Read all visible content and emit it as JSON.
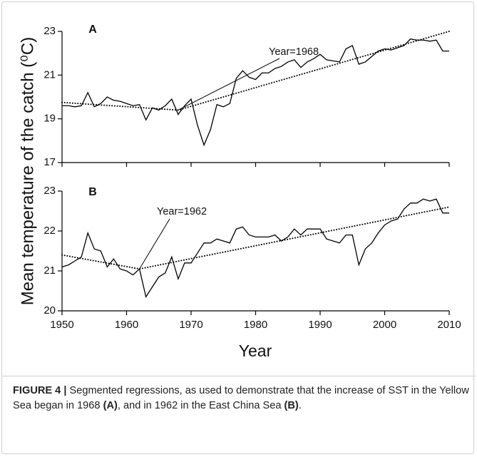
{
  "chart_data": [
    {
      "type": "line",
      "title": "A",
      "x": [
        1950,
        1951,
        1952,
        1953,
        1954,
        1955,
        1956,
        1957,
        1958,
        1959,
        1960,
        1961,
        1962,
        1963,
        1964,
        1965,
        1966,
        1967,
        1968,
        1969,
        1970,
        1971,
        1972,
        1973,
        1974,
        1975,
        1976,
        1977,
        1978,
        1979,
        1980,
        1981,
        1982,
        1983,
        1984,
        1985,
        1986,
        1987,
        1988,
        1989,
        1990,
        1991,
        1992,
        1993,
        1994,
        1995,
        1996,
        1997,
        1998,
        1999,
        2000,
        2001,
        2002,
        2003,
        2004,
        2005,
        2006,
        2007,
        2008,
        2009,
        2010
      ],
      "values": [
        19.6,
        19.6,
        19.55,
        19.6,
        20.2,
        19.55,
        19.7,
        20.0,
        19.85,
        19.8,
        19.7,
        19.6,
        19.65,
        18.95,
        19.5,
        19.4,
        19.6,
        19.9,
        19.2,
        19.6,
        19.9,
        18.7,
        17.8,
        18.5,
        19.65,
        19.55,
        19.7,
        20.85,
        21.2,
        20.9,
        20.8,
        21.1,
        21.1,
        21.3,
        21.4,
        21.6,
        21.7,
        21.35,
        21.6,
        21.75,
        21.95,
        21.7,
        21.65,
        21.6,
        22.2,
        22.35,
        21.5,
        21.6,
        21.85,
        22.1,
        22.2,
        22.15,
        22.25,
        22.35,
        22.65,
        22.6,
        22.6,
        22.55,
        22.6,
        22.1,
        22.1
      ],
      "color": "#000000",
      "trend": {
        "x": [
          1950,
          1968,
          2010
        ],
        "values": [
          19.75,
          19.4,
          23.0
        ],
        "style": "dotted"
      },
      "annotation": {
        "text": "Year=1968",
        "x": 1968
      },
      "xlim": [
        1950,
        2010
      ],
      "xticks": [
        1950,
        1960,
        1970,
        1980,
        1990,
        2000,
        2010
      ],
      "xtick_labels": false,
      "ylim": [
        17,
        23
      ],
      "yticks": [
        17,
        19,
        21,
        23
      ]
    },
    {
      "type": "line",
      "title": "B",
      "x": [
        1950,
        1951,
        1952,
        1953,
        1954,
        1955,
        1956,
        1957,
        1958,
        1959,
        1960,
        1961,
        1962,
        1963,
        1964,
        1965,
        1966,
        1967,
        1968,
        1969,
        1970,
        1971,
        1972,
        1973,
        1974,
        1975,
        1976,
        1977,
        1978,
        1979,
        1980,
        1981,
        1982,
        1983,
        1984,
        1985,
        1986,
        1987,
        1988,
        1989,
        1990,
        1991,
        1992,
        1993,
        1994,
        1995,
        1996,
        1997,
        1998,
        1999,
        2000,
        2001,
        2002,
        2003,
        2004,
        2005,
        2006,
        2007,
        2008,
        2009,
        2010
      ],
      "values": [
        21.1,
        21.15,
        21.25,
        21.35,
        21.95,
        21.55,
        21.5,
        21.1,
        21.3,
        21.05,
        21.0,
        20.9,
        21.05,
        20.35,
        20.6,
        20.85,
        20.95,
        21.35,
        20.8,
        21.2,
        21.2,
        21.45,
        21.7,
        21.7,
        21.8,
        21.75,
        21.7,
        22.05,
        22.1,
        21.9,
        21.85,
        21.85,
        21.85,
        21.9,
        21.75,
        21.85,
        22.05,
        21.9,
        22.05,
        22.05,
        22.05,
        21.8,
        21.75,
        21.7,
        21.9,
        21.9,
        21.15,
        21.55,
        21.7,
        21.95,
        22.15,
        22.25,
        22.3,
        22.55,
        22.7,
        22.7,
        22.8,
        22.75,
        22.8,
        22.45,
        22.45
      ],
      "color": "#000000",
      "trend": {
        "x": [
          1950,
          1962,
          2010
        ],
        "values": [
          21.4,
          21.05,
          22.6
        ],
        "style": "dotted"
      },
      "annotation": {
        "text": "Year=1962",
        "x": 1962
      },
      "xlim": [
        1950,
        2010
      ],
      "xticks": [
        1950,
        1960,
        1970,
        1980,
        1990,
        2000,
        2010
      ],
      "xtick_labels": true,
      "ylim": [
        20,
        23
      ],
      "yticks": [
        20,
        21,
        22,
        23
      ]
    }
  ],
  "ylabel": "Mean temperature of the catch  (⁰C)",
  "xlabel": "Year",
  "caption": [
    {
      "text": "FIGURE 4 |",
      "bold": true
    },
    {
      "text": " Segmented regressions, as used to demonstrate that the increase of SST in the Yellow Sea began in 1968 ",
      "bold": false
    },
    {
      "text": "(A)",
      "bold": true
    },
    {
      "text": ", and in 1962 in the East China Sea ",
      "bold": false
    },
    {
      "text": "(B)",
      "bold": true
    },
    {
      "text": ".",
      "bold": false
    }
  ]
}
